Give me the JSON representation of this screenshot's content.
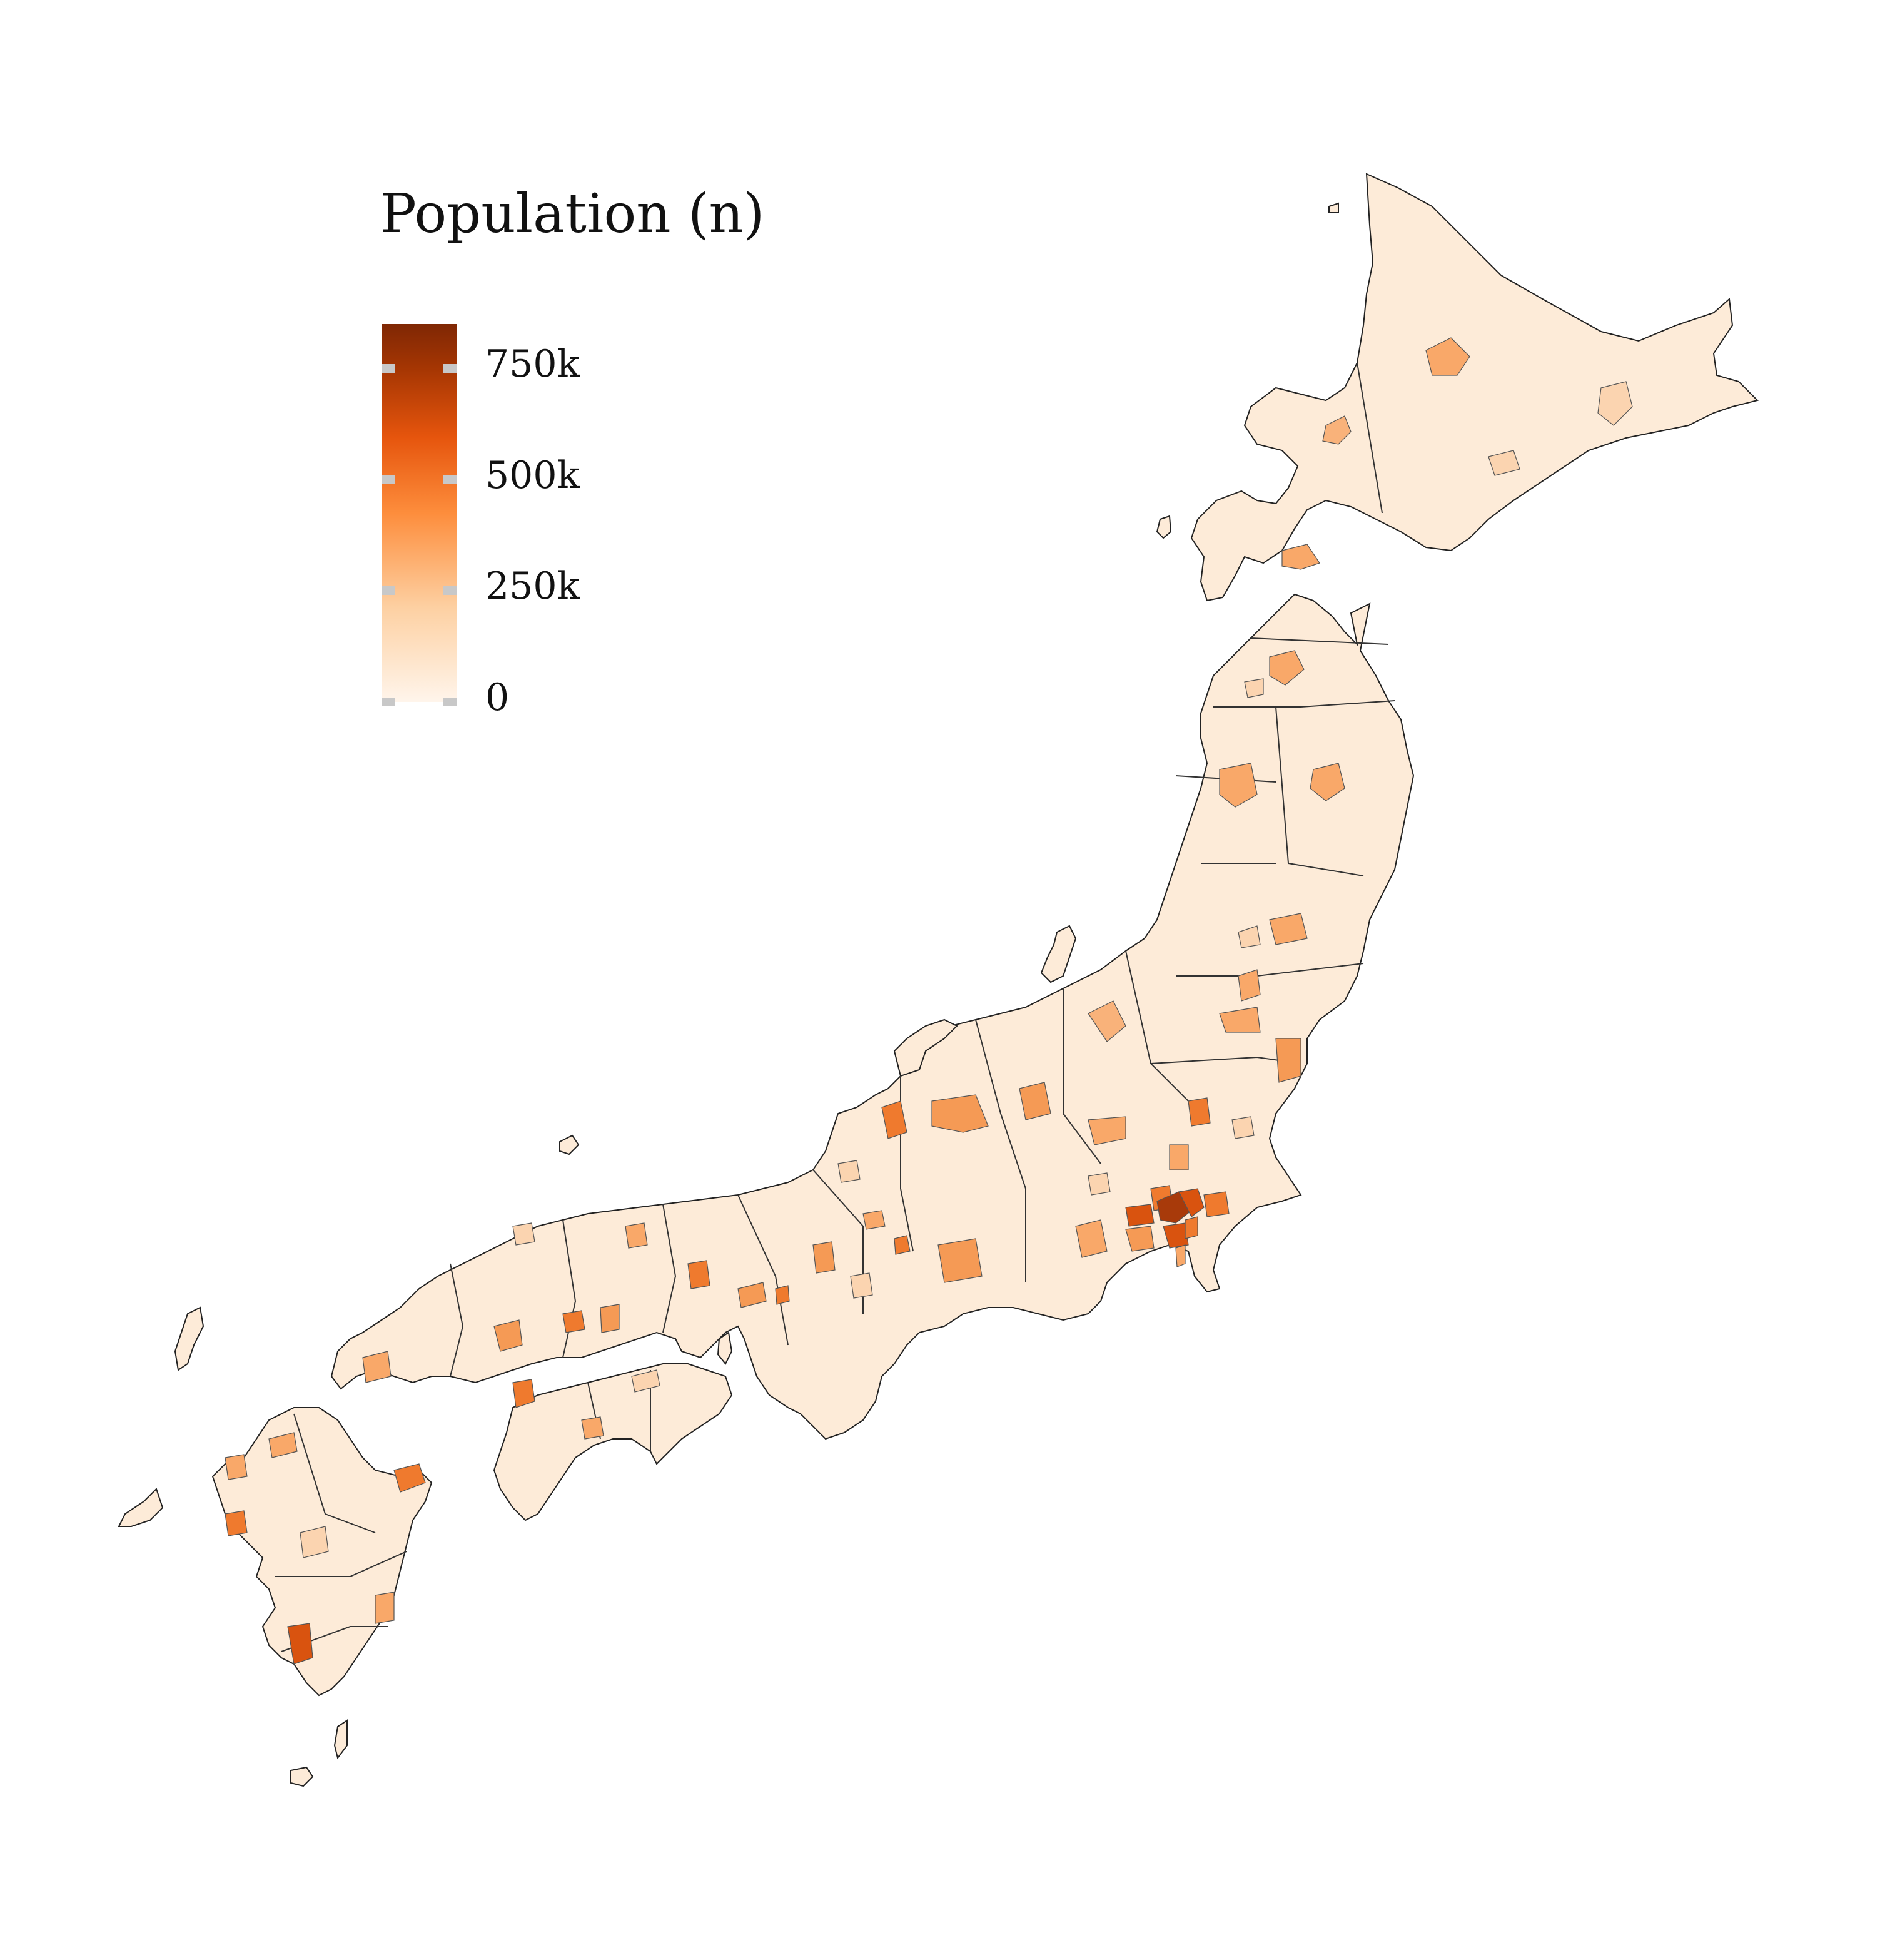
{
  "legend": {
    "title": "Population (n)",
    "ticks": [
      {
        "label": "750k",
        "value": 750000
      },
      {
        "label": "500k",
        "value": 500000
      },
      {
        "label": "250k",
        "value": 250000
      },
      {
        "label": "0",
        "value": 0
      }
    ],
    "scale_min": 0,
    "scale_max": 850000,
    "gradient_colors": [
      "#fff5eb",
      "#fdd0a2",
      "#fd8d3c",
      "#e6550d",
      "#a63603",
      "#7f2704"
    ]
  },
  "map": {
    "subject": "Japan municipalities",
    "fill_base": "#fdebd8",
    "border_color": "#555555",
    "highlight_colors": [
      "#fbd4b0",
      "#f9a869",
      "#ef7a2e",
      "#d9530f",
      "#a83a0a"
    ]
  }
}
